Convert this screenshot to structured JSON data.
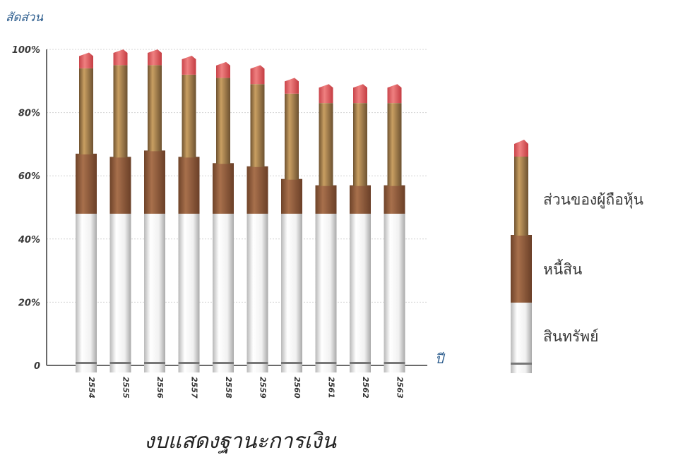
{
  "chart_data": {
    "type": "bar",
    "stacked": true,
    "title": "งบแสดงฐานะการเงิน",
    "ylabel": "สัดส่วน",
    "xlabel": "ปี",
    "ylim": [
      0,
      100
    ],
    "y_ticks": [
      "0",
      "20%",
      "40%",
      "60%",
      "80%",
      "100%"
    ],
    "y_tick_values": [
      0,
      20,
      40,
      60,
      80,
      100
    ],
    "categories": [
      "2554",
      "2555",
      "2556",
      "2557",
      "2558",
      "2559",
      "2560",
      "2561",
      "2562",
      "2563"
    ],
    "series": [
      {
        "name": "สินทรัพย์",
        "values": [
          48,
          48,
          48,
          48,
          48,
          48,
          48,
          48,
          48,
          48
        ]
      },
      {
        "name": "หนี้สิน",
        "values": [
          19,
          18,
          20,
          18,
          16,
          15,
          11,
          9,
          9,
          9
        ]
      },
      {
        "name": "ส่วนของผู้ถือหุ้น",
        "values": [
          27,
          29,
          27,
          26,
          27,
          26,
          27,
          26,
          26,
          26
        ]
      }
    ],
    "tip_values": [
      99,
      100,
      100,
      98,
      96,
      95,
      91,
      89,
      89,
      89
    ],
    "grid": true,
    "legend_position": "right",
    "colors": {
      "assets": "#e6e6e6",
      "liabilities": "#9c6442",
      "equity": "#b88a52",
      "tip": "#e0585b",
      "axis": "#6a6a6a",
      "grid": "#d4d4d4",
      "title_blue": "#2f5f8f"
    }
  }
}
